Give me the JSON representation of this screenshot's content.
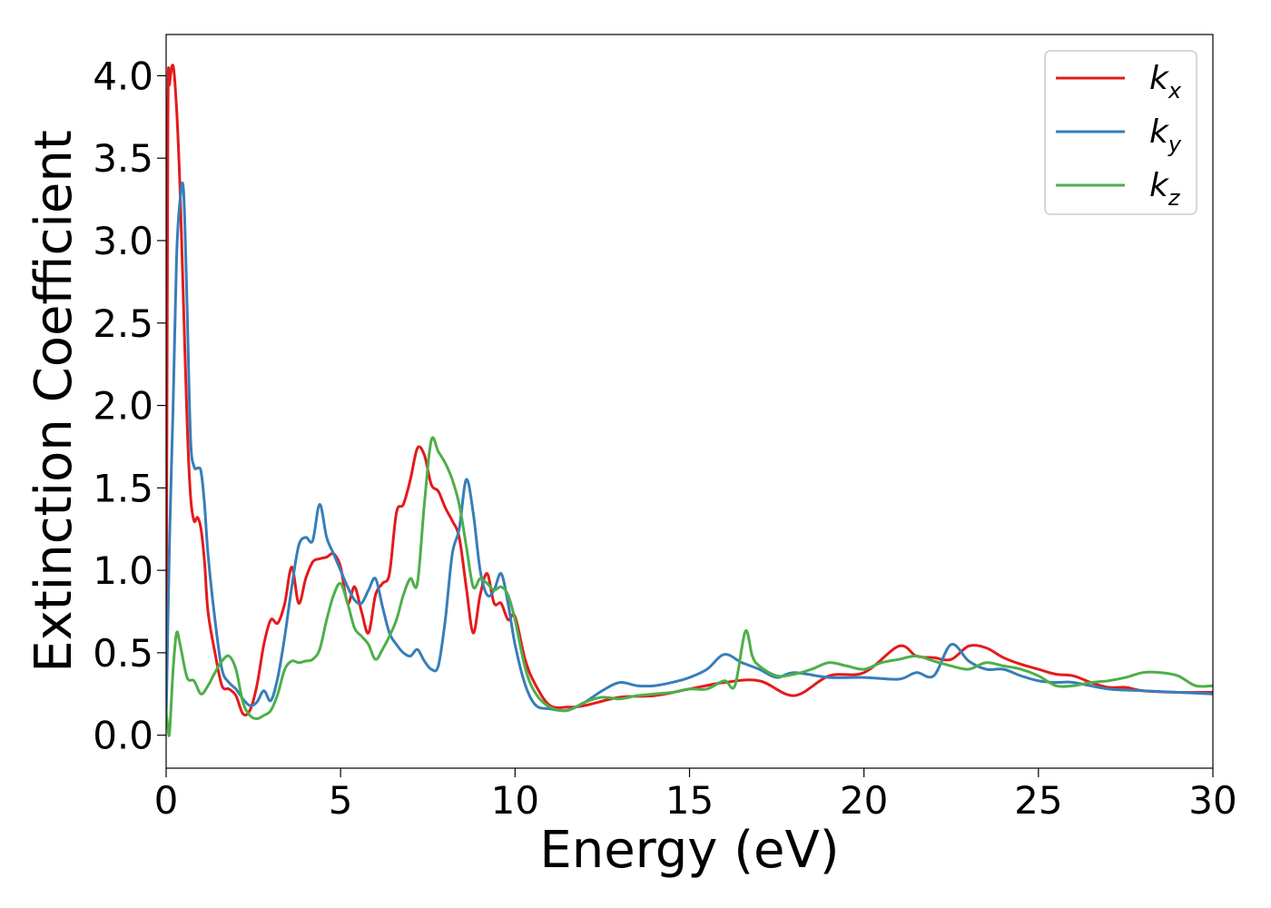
{
  "chart_data": {
    "type": "line",
    "xlabel": "Energy (eV)",
    "ylabel": "Extinction Coefficient",
    "xlim": [
      0,
      30
    ],
    "ylim": [
      -0.2,
      4.25
    ],
    "xticks": [
      0,
      5,
      10,
      15,
      20,
      25,
      30
    ],
    "xtick_labels": [
      "0",
      "5",
      "10",
      "15",
      "20",
      "25",
      "30"
    ],
    "yticks": [
      0.0,
      0.5,
      1.0,
      1.5,
      2.0,
      2.5,
      3.0,
      3.5,
      4.0
    ],
    "ytick_labels": [
      "0.0",
      "0.5",
      "1.0",
      "1.5",
      "2.0",
      "2.5",
      "3.0",
      "3.5",
      "4.0"
    ],
    "grid": false,
    "legend_position": "top-right",
    "series": [
      {
        "name": "k_x",
        "legend_main": "k",
        "legend_sub": "x",
        "color": "#e41a1c",
        "x": [
          0,
          0.05,
          0.1,
          0.2,
          0.3,
          0.4,
          0.5,
          0.6,
          0.7,
          0.8,
          0.9,
          1.0,
          1.1,
          1.2,
          1.4,
          1.6,
          1.8,
          2.0,
          2.2,
          2.4,
          2.6,
          2.8,
          3.0,
          3.2,
          3.4,
          3.6,
          3.8,
          4.0,
          4.2,
          4.4,
          4.6,
          4.8,
          5.0,
          5.2,
          5.4,
          5.6,
          5.8,
          6.0,
          6.2,
          6.4,
          6.6,
          6.8,
          7.0,
          7.2,
          7.4,
          7.6,
          7.8,
          8.0,
          8.2,
          8.4,
          8.6,
          8.8,
          9.0,
          9.2,
          9.4,
          9.6,
          9.8,
          10.0,
          10.3,
          10.6,
          11.0,
          11.5,
          12,
          13,
          14,
          15,
          16,
          17,
          18,
          19,
          20,
          21,
          21.5,
          22,
          22.5,
          23,
          23.5,
          24,
          24.5,
          25,
          25.5,
          26,
          26.5,
          27,
          27.5,
          28,
          29,
          30
        ],
        "y": [
          0.1,
          3.7,
          3.95,
          4.06,
          3.8,
          3.3,
          2.6,
          1.9,
          1.45,
          1.3,
          1.32,
          1.25,
          1.05,
          0.75,
          0.5,
          0.3,
          0.28,
          0.24,
          0.13,
          0.15,
          0.3,
          0.55,
          0.7,
          0.68,
          0.8,
          1.02,
          0.8,
          0.95,
          1.05,
          1.07,
          1.08,
          1.1,
          1.02,
          0.8,
          0.9,
          0.75,
          0.62,
          0.85,
          0.92,
          0.98,
          1.35,
          1.4,
          1.55,
          1.74,
          1.7,
          1.52,
          1.48,
          1.38,
          1.3,
          1.2,
          0.9,
          0.62,
          0.85,
          0.98,
          0.8,
          0.8,
          0.7,
          0.72,
          0.45,
          0.3,
          0.18,
          0.17,
          0.18,
          0.23,
          0.24,
          0.28,
          0.32,
          0.33,
          0.24,
          0.36,
          0.38,
          0.54,
          0.48,
          0.47,
          0.46,
          0.54,
          0.53,
          0.47,
          0.43,
          0.4,
          0.37,
          0.36,
          0.32,
          0.29,
          0.29,
          0.27,
          0.26,
          0.26
        ]
      },
      {
        "name": "k_y",
        "legend_main": "k",
        "legend_sub": "y",
        "color": "#377eb8",
        "x": [
          0,
          0.1,
          0.2,
          0.3,
          0.4,
          0.5,
          0.6,
          0.7,
          0.8,
          0.9,
          1.0,
          1.1,
          1.2,
          1.4,
          1.6,
          1.8,
          2.0,
          2.2,
          2.4,
          2.6,
          2.8,
          3.0,
          3.2,
          3.4,
          3.6,
          3.8,
          4.0,
          4.2,
          4.4,
          4.6,
          4.8,
          5.0,
          5.2,
          5.4,
          5.6,
          5.8,
          6.0,
          6.2,
          6.4,
          6.6,
          6.8,
          7.0,
          7.2,
          7.4,
          7.6,
          7.8,
          8.0,
          8.2,
          8.4,
          8.6,
          8.8,
          9.0,
          9.2,
          9.4,
          9.6,
          9.8,
          10.0,
          10.3,
          10.6,
          11.0,
          11.5,
          12,
          12.5,
          13,
          13.5,
          14,
          14.5,
          15,
          15.5,
          16,
          16.5,
          17,
          17.5,
          18,
          19,
          20,
          21,
          21.5,
          22,
          22.5,
          23,
          23.5,
          24,
          24.5,
          25,
          25.5,
          26,
          27,
          28,
          29,
          30
        ],
        "y": [
          0.1,
          1.2,
          2.0,
          2.9,
          3.25,
          3.3,
          2.6,
          1.8,
          1.63,
          1.62,
          1.6,
          1.4,
          1.1,
          0.7,
          0.4,
          0.32,
          0.28,
          0.22,
          0.18,
          0.2,
          0.27,
          0.21,
          0.35,
          0.6,
          0.9,
          1.15,
          1.2,
          1.18,
          1.4,
          1.2,
          1.1,
          1.0,
          0.9,
          0.82,
          0.8,
          0.88,
          0.95,
          0.78,
          0.62,
          0.55,
          0.5,
          0.48,
          0.52,
          0.45,
          0.4,
          0.42,
          0.7,
          1.1,
          1.25,
          1.55,
          1.35,
          1.0,
          0.85,
          0.88,
          0.98,
          0.8,
          0.55,
          0.3,
          0.18,
          0.16,
          0.15,
          0.2,
          0.27,
          0.32,
          0.3,
          0.3,
          0.32,
          0.35,
          0.4,
          0.49,
          0.44,
          0.4,
          0.35,
          0.38,
          0.35,
          0.35,
          0.34,
          0.38,
          0.36,
          0.55,
          0.45,
          0.4,
          0.4,
          0.36,
          0.33,
          0.32,
          0.32,
          0.28,
          0.27,
          0.26,
          0.25
        ]
      },
      {
        "name": "k_z",
        "legend_main": "k",
        "legend_sub": "z",
        "color": "#4daf4a",
        "x": [
          0,
          0.05,
          0.1,
          0.2,
          0.3,
          0.4,
          0.6,
          0.8,
          1.0,
          1.2,
          1.4,
          1.6,
          1.8,
          2.0,
          2.2,
          2.4,
          2.6,
          2.8,
          3.0,
          3.2,
          3.4,
          3.6,
          3.8,
          4.0,
          4.2,
          4.4,
          4.6,
          4.8,
          5.0,
          5.2,
          5.4,
          5.6,
          5.8,
          6.0,
          6.2,
          6.4,
          6.6,
          6.8,
          7.0,
          7.2,
          7.4,
          7.6,
          7.8,
          8.0,
          8.2,
          8.4,
          8.6,
          8.8,
          9.0,
          9.2,
          9.4,
          9.6,
          9.8,
          10.0,
          10.3,
          10.6,
          11.0,
          11.5,
          12,
          12.5,
          13,
          13.5,
          14,
          14.5,
          15,
          15.5,
          16,
          16.3,
          16.6,
          16.8,
          17,
          17.5,
          18,
          18.5,
          19,
          19.5,
          20,
          20.5,
          21,
          21.5,
          22,
          22.5,
          23,
          23.5,
          24,
          24.5,
          25,
          25.5,
          26,
          26.5,
          27,
          27.5,
          28,
          28.5,
          29,
          29.5,
          30
        ],
        "y": [
          0.15,
          0.05,
          0.02,
          0.4,
          0.62,
          0.55,
          0.35,
          0.33,
          0.25,
          0.3,
          0.38,
          0.45,
          0.48,
          0.4,
          0.2,
          0.12,
          0.1,
          0.12,
          0.15,
          0.25,
          0.4,
          0.45,
          0.44,
          0.45,
          0.46,
          0.52,
          0.7,
          0.85,
          0.92,
          0.8,
          0.65,
          0.6,
          0.55,
          0.46,
          0.52,
          0.6,
          0.7,
          0.85,
          0.95,
          0.92,
          1.4,
          1.79,
          1.72,
          1.65,
          1.55,
          1.4,
          1.15,
          0.9,
          0.95,
          0.92,
          0.88,
          0.9,
          0.85,
          0.7,
          0.4,
          0.25,
          0.17,
          0.15,
          0.2,
          0.23,
          0.22,
          0.24,
          0.25,
          0.26,
          0.28,
          0.28,
          0.33,
          0.3,
          0.63,
          0.48,
          0.42,
          0.36,
          0.37,
          0.4,
          0.44,
          0.42,
          0.4,
          0.44,
          0.46,
          0.48,
          0.45,
          0.42,
          0.4,
          0.44,
          0.42,
          0.4,
          0.36,
          0.3,
          0.3,
          0.32,
          0.33,
          0.35,
          0.38,
          0.38,
          0.36,
          0.3,
          0.3
        ]
      }
    ]
  }
}
